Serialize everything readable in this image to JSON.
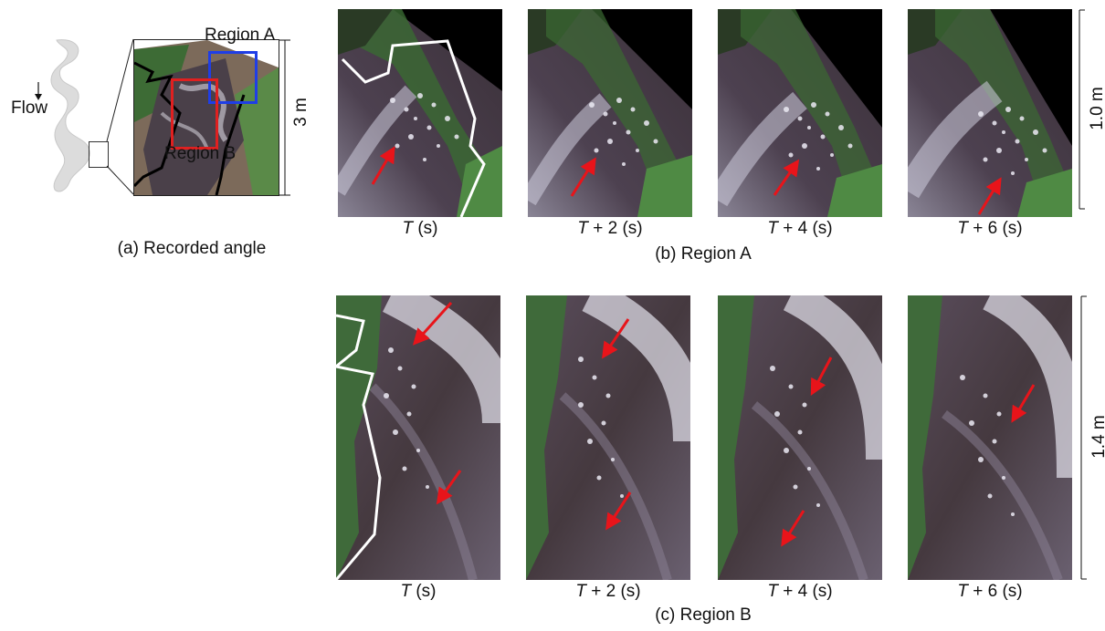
{
  "overview": {
    "flow_label": "Flow",
    "region_a_label": "Region A",
    "region_b_label": "Region B",
    "scale_label": "3 m",
    "caption": "(a) Recorded angle"
  },
  "region_a": {
    "caption": "(b) Region A",
    "scale_label": "1.0 m",
    "frames": [
      {
        "var": "T",
        "suffix": " (s)"
      },
      {
        "var": "T",
        "suffix": " + 2 (s)"
      },
      {
        "var": "T",
        "suffix": " + 4 (s)"
      },
      {
        "var": "T",
        "suffix": " + 6 (s)"
      }
    ]
  },
  "region_b": {
    "caption": "(c) Region B",
    "scale_label": "1.4 m",
    "frames": [
      {
        "var": "T",
        "suffix": " (s)"
      },
      {
        "var": "T",
        "suffix": " + 2 (s)"
      },
      {
        "var": "T",
        "suffix": " + 4 (s)"
      },
      {
        "var": "T",
        "suffix": " + 6 (s)"
      }
    ]
  },
  "colors": {
    "arrow": "#e8141a",
    "region_a_box": "#1f3ee6",
    "region_b_box": "#e02020",
    "water": "#4a3f4a",
    "foam": "#e8e6f0",
    "vegetation": "#3f7a3a",
    "shadow": "#000000"
  }
}
